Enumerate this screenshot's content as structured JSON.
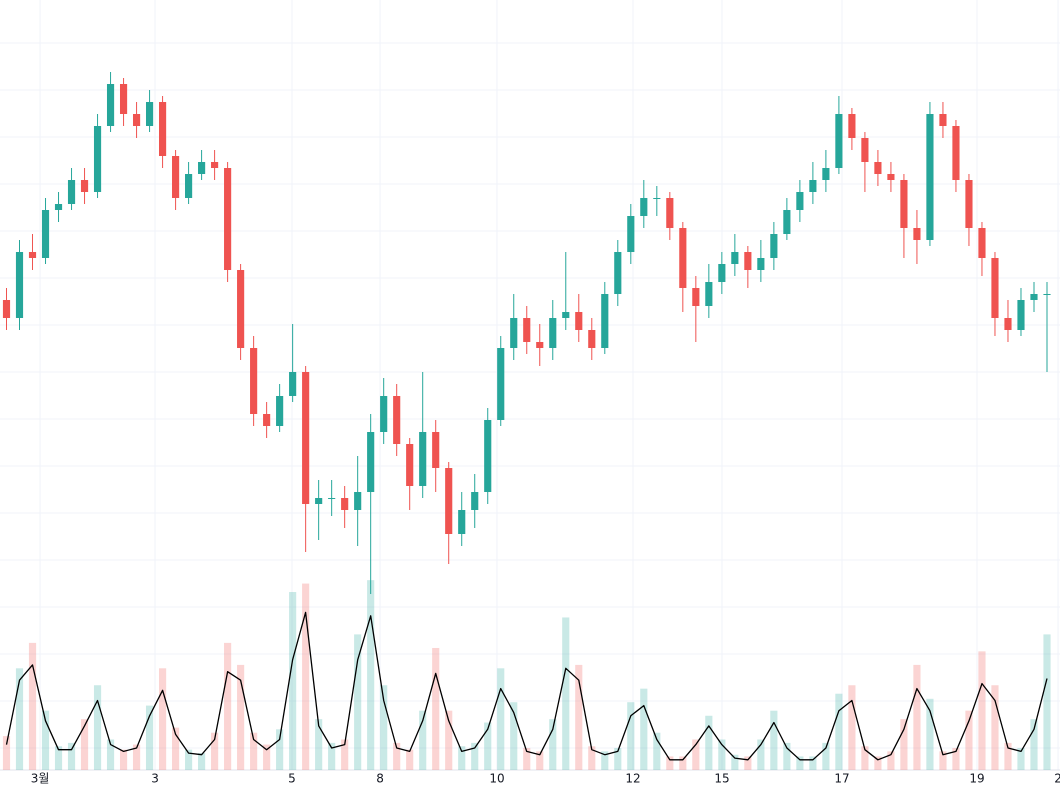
{
  "chart_data": {
    "type": "candlestick",
    "up_color": "#26a69a",
    "down_color": "#ef5350",
    "line_color": "#000000",
    "grid": true,
    "xlim": [
      -0.5,
      81
    ],
    "ylim": [
      0,
      100
    ],
    "volume_ylim": [
      0,
      118
    ],
    "xticks": [
      {
        "value": 2.58,
        "label": "3월"
      },
      {
        "value": 11.42,
        "label": "3"
      },
      {
        "value": 21.95,
        "label": "5"
      },
      {
        "value": 28.72,
        "label": "8"
      },
      {
        "value": 37.71,
        "label": "10"
      },
      {
        "value": 48.17,
        "label": "12"
      },
      {
        "value": 55.01,
        "label": "15"
      },
      {
        "value": 64.24,
        "label": "17"
      },
      {
        "value": 74.62,
        "label": "19"
      },
      {
        "value": 80.85,
        "label": "2"
      }
    ],
    "open": [
      50,
      47,
      58,
      57,
      65,
      66,
      70,
      68,
      79,
      86,
      81,
      79,
      83,
      74,
      67,
      71,
      73,
      72,
      55,
      42,
      31,
      29,
      34,
      38,
      16,
      17,
      17,
      15,
      18,
      28,
      34,
      26,
      19,
      28,
      22,
      11,
      15,
      18,
      30,
      42,
      47,
      43,
      42,
      47,
      48,
      45,
      42,
      51,
      58,
      64,
      67,
      67,
      62,
      52,
      49,
      53,
      56,
      58,
      55,
      57,
      61,
      65,
      68,
      70,
      72,
      81,
      77,
      73,
      71,
      70,
      62,
      60,
      81,
      79,
      70,
      62,
      57,
      47,
      45,
      50,
      51
    ],
    "high": [
      52,
      60,
      61,
      67,
      68,
      72,
      72,
      81,
      88,
      87,
      83,
      85,
      84,
      75,
      73,
      75,
      75,
      73,
      56,
      44,
      33,
      36,
      46,
      39,
      20,
      20,
      19,
      24,
      31,
      37,
      36,
      27,
      38,
      30,
      23,
      18,
      21,
      32,
      44,
      51,
      49,
      46,
      50,
      58,
      51,
      47,
      53,
      60,
      66,
      70,
      69,
      68,
      63,
      54,
      56,
      58,
      61,
      59,
      60,
      63,
      67,
      70,
      73,
      75,
      84,
      82,
      78,
      75,
      73,
      71,
      65,
      83,
      83,
      80,
      71,
      63,
      58,
      50,
      52,
      53,
      53
    ],
    "low": [
      45,
      45,
      55,
      56,
      63,
      65,
      66,
      67,
      78,
      79,
      77,
      78,
      72,
      65,
      66,
      70,
      70,
      53,
      40,
      29,
      27,
      28,
      33,
      8,
      10,
      14,
      12,
      9,
      1,
      26,
      24,
      15,
      17,
      18,
      6,
      9,
      12,
      16,
      29,
      40,
      41,
      39,
      40,
      45,
      43,
      40,
      41,
      49,
      56,
      62,
      64,
      60,
      48,
      43,
      47,
      51,
      54,
      52,
      53,
      55,
      60,
      63,
      66,
      68,
      71,
      75,
      68,
      69,
      68,
      57,
      56,
      59,
      77,
      68,
      59,
      54,
      44,
      43,
      44,
      48,
      38
    ],
    "close": [
      47,
      58,
      57,
      65,
      66,
      70,
      68,
      79,
      86,
      81,
      79,
      83,
      74,
      67,
      71,
      73,
      72,
      55,
      42,
      31,
      29,
      34,
      38,
      16,
      17,
      17,
      15,
      18,
      28,
      34,
      26,
      19,
      28,
      22,
      11,
      15,
      18,
      30,
      42,
      47,
      43,
      42,
      47,
      48,
      45,
      42,
      51,
      58,
      64,
      67,
      67,
      62,
      52,
      49,
      53,
      56,
      58,
      55,
      57,
      61,
      65,
      68,
      70,
      72,
      81,
      77,
      73,
      71,
      70,
      62,
      60,
      81,
      79,
      70,
      62,
      57,
      47,
      45,
      50,
      51,
      51
    ],
    "volume": [
      20,
      60,
      75,
      35,
      14,
      16,
      30,
      50,
      18,
      12,
      15,
      38,
      60,
      25,
      12,
      10,
      22,
      75,
      62,
      22,
      15,
      24,
      105,
      110,
      30,
      16,
      18,
      80,
      112,
      50,
      16,
      12,
      35,
      72,
      35,
      14,
      16,
      28,
      60,
      40,
      13,
      11,
      30,
      90,
      62,
      14,
      11,
      13,
      40,
      48,
      22,
      8,
      8,
      18,
      32,
      18,
      9,
      8,
      18,
      35,
      16,
      8,
      8,
      16,
      45,
      50,
      14,
      8,
      11,
      30,
      62,
      42,
      11,
      13,
      35,
      70,
      50,
      16,
      13,
      30,
      80
    ],
    "volume_ma": [
      15,
      53,
      62,
      29,
      12,
      12,
      26,
      41,
      15,
      11,
      13,
      32,
      47,
      21,
      10,
      9,
      18,
      58,
      53,
      18,
      12,
      18,
      65,
      93,
      26,
      13,
      15,
      65,
      91,
      41,
      13,
      11,
      29,
      57,
      29,
      11,
      13,
      24,
      48,
      34,
      11,
      9,
      24,
      60,
      53,
      12,
      9,
      11,
      32,
      38,
      18,
      6,
      6,
      15,
      26,
      15,
      7,
      6,
      15,
      28,
      13,
      6,
      6,
      13,
      35,
      41,
      12,
      6,
      9,
      24,
      48,
      35,
      9,
      11,
      29,
      51,
      41,
      13,
      11,
      24,
      54
    ]
  }
}
